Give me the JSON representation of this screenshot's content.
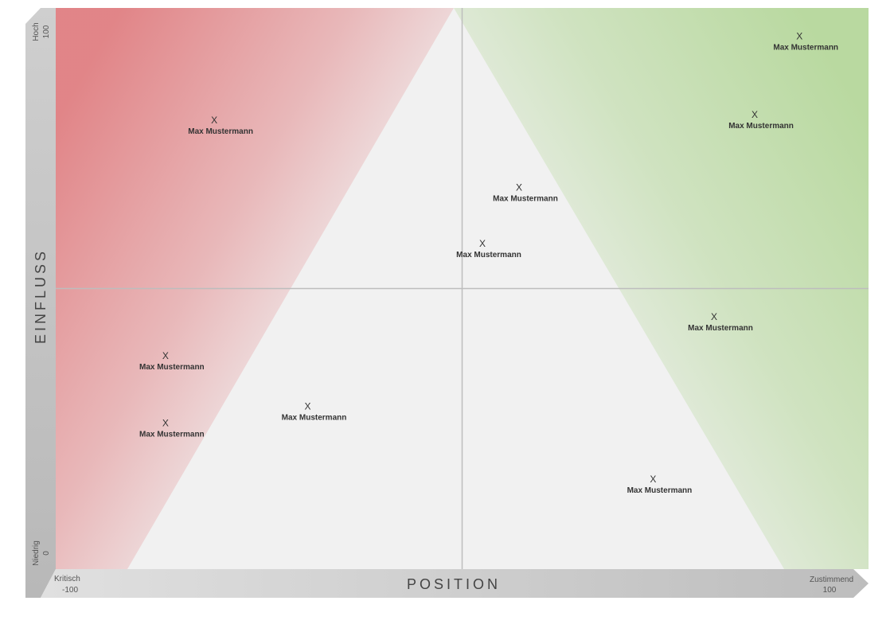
{
  "chart_data": {
    "type": "scatter",
    "title": "",
    "xlabel": "POSITION",
    "ylabel": "EINFLUSS",
    "xlim": [
      -100,
      100
    ],
    "ylim": [
      0,
      100
    ],
    "x_ticks": [
      {
        "word": "Kritisch",
        "value": "-100"
      },
      {
        "word": "Zustimmend",
        "value": "100"
      }
    ],
    "y_ticks": [
      {
        "word": "Niedrig",
        "value": "0"
      },
      {
        "word": "Hoch",
        "value": "100"
      }
    ],
    "marker": "X",
    "grid": false,
    "quadrant_lines": {
      "x": 0,
      "y": 50
    },
    "colors": {
      "critical": "#e07f82",
      "supportive": "#b9d9a0",
      "neutral": "#f1f1f1",
      "axis_bar": "#c4c4c4",
      "divider": "#bdbdbd"
    },
    "points": [
      {
        "x": 83,
        "y": 95,
        "label": "Max Mustermann"
      },
      {
        "x": 72,
        "y": 81,
        "label": "Max Mustermann"
      },
      {
        "x": -61,
        "y": 80,
        "label": "Max Mustermann"
      },
      {
        "x": 14,
        "y": 68,
        "label": "Max Mustermann"
      },
      {
        "x": 5,
        "y": 58,
        "label": "Max Mustermann"
      },
      {
        "x": 62,
        "y": 45,
        "label": "Max Mustermann"
      },
      {
        "x": -73,
        "y": 38,
        "label": "Max Mustermann"
      },
      {
        "x": -38,
        "y": 29,
        "label": "Max Mustermann"
      },
      {
        "x": -73,
        "y": 26,
        "label": "Max Mustermann"
      },
      {
        "x": 47,
        "y": 16,
        "label": "Max Mustermann"
      }
    ]
  }
}
